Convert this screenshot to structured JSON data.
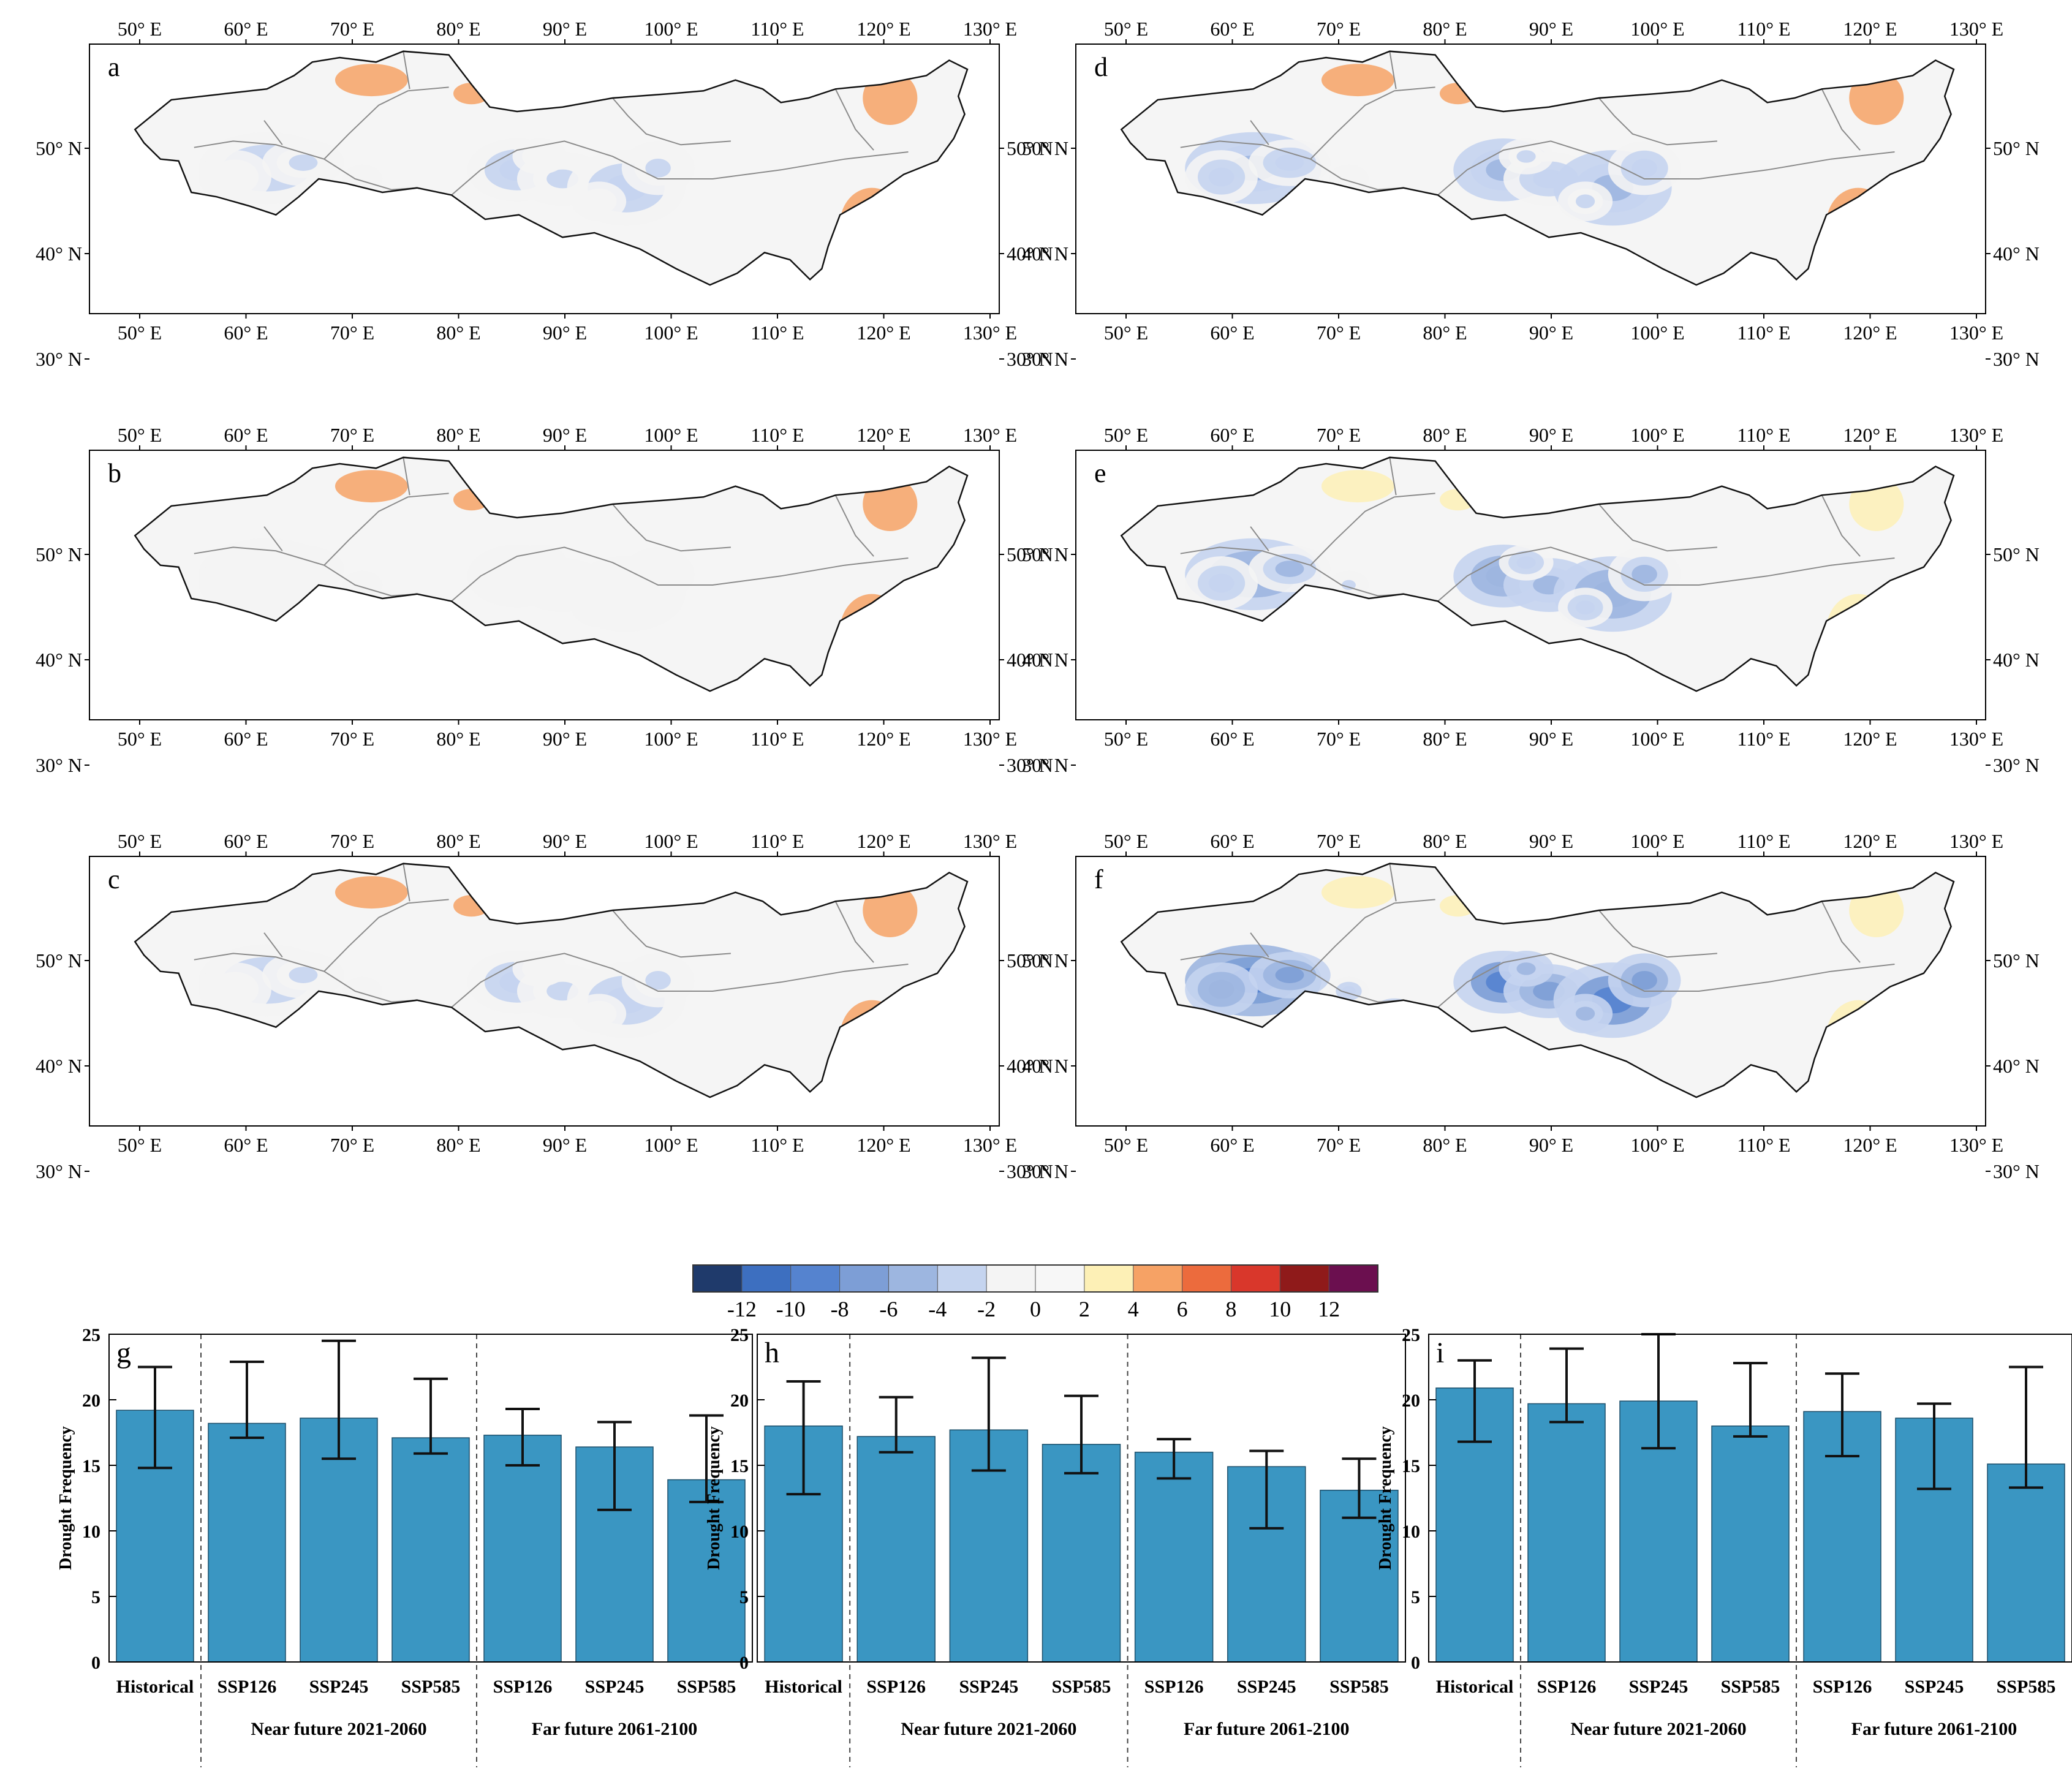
{
  "maps": {
    "lon_ticks": [
      "50° E",
      "60° E",
      "70° E",
      "80° E",
      "90° E",
      "100° E",
      "110° E",
      "120° E",
      "130° E"
    ],
    "lat_ticks": [
      "50° N",
      "40° N",
      "30° N"
    ],
    "panels": [
      {
        "letter": "a",
        "anom": -3
      },
      {
        "letter": "b",
        "anom": -2
      },
      {
        "letter": "c",
        "anom": -3
      },
      {
        "letter": "d",
        "anom": -5
      },
      {
        "letter": "e",
        "anom": -6
      },
      {
        "letter": "f",
        "anom": -9
      }
    ]
  },
  "colorbar": {
    "ticks": [
      "-12",
      "-10",
      "-8",
      "-6",
      "-4",
      "-2",
      "0",
      "2",
      "4",
      "6",
      "8",
      "10",
      "12"
    ],
    "colors": [
      "#1f3a6b",
      "#3d6fc0",
      "#5583cf",
      "#7d9ed6",
      "#9db6e0",
      "#c5d4ef",
      "#f4f4f4",
      "#f7f7f7",
      "#fdf0b6",
      "#f6a265",
      "#ec6b3d",
      "#d9372b",
      "#8f1a1a",
      "#6b0f4f"
    ]
  },
  "bar_color": "#3a96c2",
  "chart_data": [
    {
      "type": "bar",
      "panel": "g",
      "ylabel": "Drought Frequency",
      "ylim": [
        0,
        25
      ],
      "yticks": [
        "0",
        "5",
        "10",
        "15",
        "20",
        "25"
      ],
      "categories": [
        "Historical",
        "SSP126",
        "SSP245",
        "SSP585",
        "SSP126",
        "SSP245",
        "SSP585"
      ],
      "group_labels": [
        "Near future 2021-2060",
        "Far future 2061-2100"
      ],
      "values": [
        19.2,
        18.2,
        18.6,
        17.1,
        17.3,
        16.4,
        13.9
      ],
      "err_low": [
        14.8,
        17.1,
        15.5,
        15.9,
        15.0,
        11.6,
        12.2
      ],
      "err_high": [
        22.5,
        22.9,
        24.5,
        21.6,
        19.3,
        18.3,
        18.8
      ]
    },
    {
      "type": "bar",
      "panel": "h",
      "ylabel": "Drought Frequency",
      "ylim": [
        0,
        25
      ],
      "yticks": [
        "0",
        "5",
        "10",
        "15",
        "20",
        "25"
      ],
      "categories": [
        "Historical",
        "SSP126",
        "SSP245",
        "SSP585",
        "SSP126",
        "SSP245",
        "SSP585"
      ],
      "group_labels": [
        "Near future 2021-2060",
        "Far future 2061-2100"
      ],
      "values": [
        18.0,
        17.2,
        17.7,
        16.6,
        16.0,
        14.9,
        13.1
      ],
      "err_low": [
        12.8,
        16.0,
        14.6,
        14.4,
        14.0,
        10.2,
        11.0
      ],
      "err_high": [
        21.4,
        20.2,
        23.2,
        20.3,
        17.0,
        16.1,
        15.5
      ]
    },
    {
      "type": "bar",
      "panel": "i",
      "ylabel": "Drought Frequency",
      "ylim": [
        0,
        25
      ],
      "yticks": [
        "0",
        "5",
        "10",
        "15",
        "20",
        "25"
      ],
      "categories": [
        "Historical",
        "SSP126",
        "SSP245",
        "SSP585",
        "SSP126",
        "SSP245",
        "SSP585"
      ],
      "group_labels": [
        "Near future 2021-2060",
        "Far future 2061-2100"
      ],
      "values": [
        20.9,
        19.7,
        19.9,
        18.0,
        19.1,
        18.6,
        15.1
      ],
      "err_low": [
        16.8,
        18.3,
        16.3,
        17.2,
        15.7,
        13.2,
        13.3
      ],
      "err_high": [
        23.0,
        23.9,
        25.0,
        22.8,
        22.0,
        19.7,
        22.5
      ]
    }
  ]
}
